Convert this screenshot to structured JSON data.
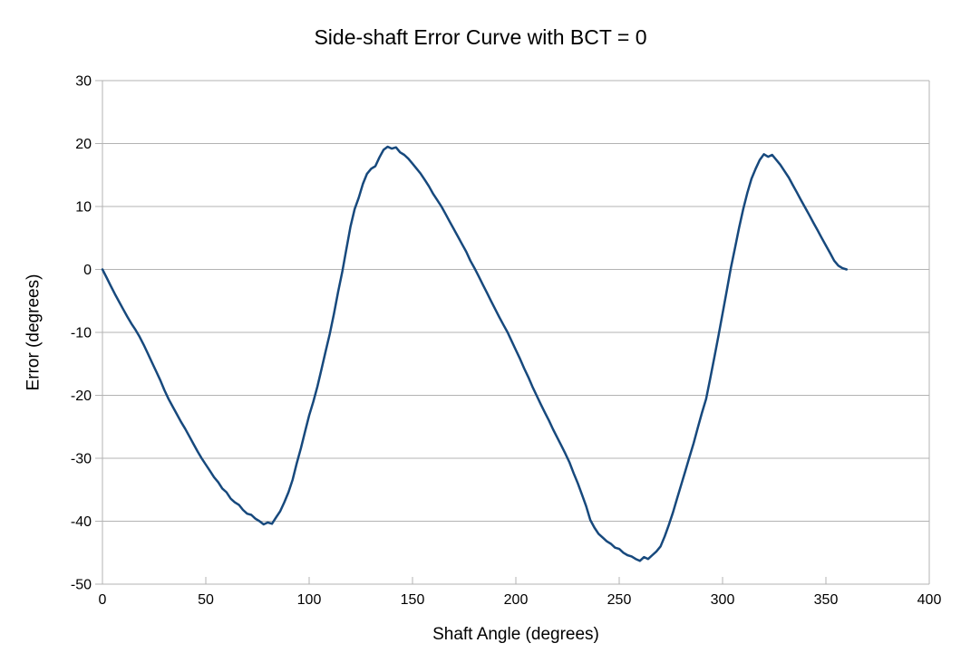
{
  "chart_data": {
    "type": "line",
    "title": "Side-shaft Error Curve with BCT = 0",
    "xlabel": "Shaft Angle (degrees)",
    "ylabel": "Error (degrees)",
    "xlim": [
      0,
      400
    ],
    "ylim": [
      -50,
      30
    ],
    "xticks": [
      0,
      50,
      100,
      150,
      200,
      250,
      300,
      350,
      400
    ],
    "yticks": [
      30,
      20,
      10,
      0,
      -10,
      -20,
      -30,
      -40,
      -50
    ],
    "grid": "horizontal-only",
    "legend": "none",
    "colors": {
      "line": "#17497d",
      "grid": "#b3b3b3",
      "axis": "#b3b3b3",
      "text": "#000000",
      "background": "#ffffff"
    },
    "series": [
      {
        "x_start": 0,
        "x_step": 2,
        "x_end": 360,
        "values": [
          0,
          -1.3,
          -2.6,
          -3.9,
          -5.1,
          -6.3,
          -7.5,
          -8.6,
          -9.6,
          -10.7,
          -12.0,
          -13.4,
          -14.8,
          -16.2,
          -17.6,
          -19.2,
          -20.6,
          -21.8,
          -23.0,
          -24.2,
          -25.3,
          -26.5,
          -27.7,
          -28.9,
          -30.0,
          -31.0,
          -32.0,
          -33.0,
          -33.8,
          -34.8,
          -35.4,
          -36.4,
          -37.0,
          -37.4,
          -38.2,
          -38.8,
          -39.0,
          -39.6,
          -40.0,
          -40.5,
          -40.2,
          -40.4,
          -39.4,
          -38.4,
          -37.0,
          -35.4,
          -33.4,
          -30.8,
          -28.4,
          -25.8,
          -23.2,
          -21.0,
          -18.6,
          -15.8,
          -13.0,
          -10.2,
          -7.0,
          -3.6,
          -0.4,
          3.2,
          6.8,
          9.6,
          11.4,
          13.6,
          15.2,
          16.0,
          16.4,
          17.8,
          19.0,
          19.5,
          19.2,
          19.4,
          18.6,
          18.2,
          17.6,
          16.8,
          16.0,
          15.2,
          14.2,
          13.2,
          12.0,
          11.0,
          10.0,
          8.8,
          7.6,
          6.4,
          5.2,
          4.0,
          2.8,
          1.4,
          0.2,
          -1.1,
          -2.4,
          -3.7,
          -5.0,
          -6.3,
          -7.6,
          -8.8,
          -10.0,
          -11.4,
          -12.8,
          -14.2,
          -15.7,
          -17.1,
          -18.6,
          -20.0,
          -21.4,
          -22.7,
          -24.0,
          -25.4,
          -26.7,
          -28.0,
          -29.3,
          -30.7,
          -32.4,
          -34.0,
          -35.8,
          -37.6,
          -39.8,
          -41.0,
          -42.0,
          -42.6,
          -43.2,
          -43.6,
          -44.2,
          -44.4,
          -45.0,
          -45.4,
          -45.6,
          -46.0,
          -46.3,
          -45.7,
          -46.0,
          -45.4,
          -44.8,
          -44.0,
          -42.4,
          -40.6,
          -38.6,
          -36.4,
          -34.2,
          -32.0,
          -29.8,
          -27.6,
          -25.2,
          -22.8,
          -20.6,
          -17.4,
          -14.0,
          -10.6,
          -7.0,
          -3.4,
          0.2,
          3.4,
          6.6,
          9.6,
          12.2,
          14.4,
          16.0,
          17.4,
          18.3,
          17.9,
          18.2,
          17.4,
          16.6,
          15.6,
          14.6,
          13.4,
          12.2,
          11.0,
          9.8,
          8.6,
          7.4,
          6.2,
          5.0,
          3.8,
          2.6,
          1.4,
          0.6,
          0.2,
          0.0
        ]
      }
    ]
  }
}
